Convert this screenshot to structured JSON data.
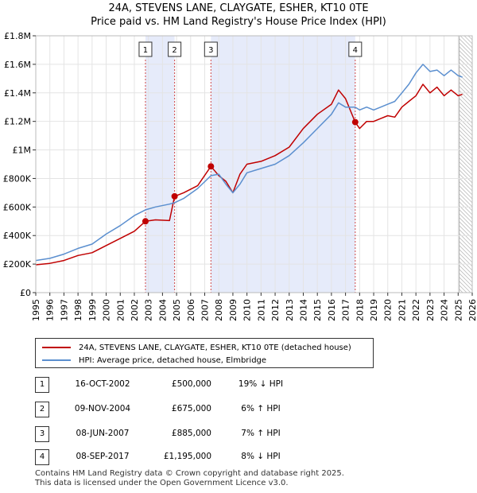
{
  "title_line1": "24A, STEVENS LANE, CLAYGATE, ESHER, KT10 0TE",
  "title_line2": "Price paid vs. HM Land Registry's House Price Index (HPI)",
  "colors": {
    "property": "#c00000",
    "hpi": "#5b8fcf",
    "shade": "#e6ebfa",
    "event_line": "#d04848"
  },
  "chart_data": {
    "type": "line",
    "x_range": [
      1995,
      2026
    ],
    "ylim": [
      0,
      1800000
    ],
    "y_ticks": [
      {
        "value": 0,
        "label": "£0"
      },
      {
        "value": 200000,
        "label": "£200K"
      },
      {
        "value": 400000,
        "label": "£400K"
      },
      {
        "value": 600000,
        "label": "£600K"
      },
      {
        "value": 800000,
        "label": "£800K"
      },
      {
        "value": 1000000,
        "label": "£1M"
      },
      {
        "value": 1200000,
        "label": "£1.2M"
      },
      {
        "value": 1400000,
        "label": "£1.4M"
      },
      {
        "value": 1600000,
        "label": "£1.6M"
      },
      {
        "value": 1800000,
        "label": "£1.8M"
      }
    ],
    "x_ticks": [
      "1995",
      "1996",
      "1997",
      "1998",
      "1999",
      "2000",
      "2001",
      "2002",
      "2003",
      "2004",
      "2005",
      "2006",
      "2007",
      "2008",
      "2009",
      "2010",
      "2011",
      "2012",
      "2013",
      "2014",
      "2015",
      "2016",
      "2017",
      "2018",
      "2019",
      "2020",
      "2021",
      "2022",
      "2023",
      "2024",
      "2025",
      "2026"
    ],
    "grid": true,
    "shaded_periods": [
      [
        2002.79,
        2004.86
      ],
      [
        2007.44,
        2017.69
      ]
    ],
    "forecast_start": 2025.08,
    "series": [
      {
        "name": "24A, STEVENS LANE, CLAYGATE, ESHER, KT10 0TE (detached house)",
        "color": "#c00000",
        "points": [
          [
            1995,
            195000
          ],
          [
            1996,
            205000
          ],
          [
            1997,
            225000
          ],
          [
            1998,
            260000
          ],
          [
            1999,
            280000
          ],
          [
            2000,
            330000
          ],
          [
            2001,
            380000
          ],
          [
            2002,
            430000
          ],
          [
            2002.79,
            500000
          ],
          [
            2003.5,
            510000
          ],
          [
            2004.5,
            505000
          ],
          [
            2004.86,
            675000
          ],
          [
            2005.5,
            700000
          ],
          [
            2006.5,
            750000
          ],
          [
            2007.44,
            885000
          ],
          [
            2008,
            820000
          ],
          [
            2008.5,
            780000
          ],
          [
            2009,
            700000
          ],
          [
            2009.5,
            830000
          ],
          [
            2010,
            900000
          ],
          [
            2011,
            920000
          ],
          [
            2012,
            960000
          ],
          [
            2013,
            1020000
          ],
          [
            2014,
            1150000
          ],
          [
            2015,
            1250000
          ],
          [
            2016,
            1320000
          ],
          [
            2016.5,
            1420000
          ],
          [
            2017,
            1360000
          ],
          [
            2017.69,
            1195000
          ],
          [
            2018,
            1150000
          ],
          [
            2018.5,
            1200000
          ],
          [
            2019,
            1200000
          ],
          [
            2019.5,
            1220000
          ],
          [
            2020,
            1240000
          ],
          [
            2020.5,
            1230000
          ],
          [
            2021,
            1300000
          ],
          [
            2021.5,
            1340000
          ],
          [
            2022,
            1380000
          ],
          [
            2022.5,
            1460000
          ],
          [
            2023,
            1400000
          ],
          [
            2023.5,
            1440000
          ],
          [
            2024,
            1380000
          ],
          [
            2024.5,
            1420000
          ],
          [
            2025,
            1380000
          ],
          [
            2025.3,
            1390000
          ]
        ]
      },
      {
        "name": "HPI: Average price, detached house, Elmbridge",
        "color": "#5b8fcf",
        "points": [
          [
            1995,
            225000
          ],
          [
            1996,
            240000
          ],
          [
            1997,
            270000
          ],
          [
            1998,
            310000
          ],
          [
            1999,
            340000
          ],
          [
            2000,
            410000
          ],
          [
            2001,
            470000
          ],
          [
            2002,
            540000
          ],
          [
            2002.79,
            580000
          ],
          [
            2003.5,
            600000
          ],
          [
            2004.5,
            620000
          ],
          [
            2004.86,
            630000
          ],
          [
            2005.5,
            660000
          ],
          [
            2006.5,
            730000
          ],
          [
            2007.44,
            820000
          ],
          [
            2008,
            830000
          ],
          [
            2008.5,
            760000
          ],
          [
            2009,
            700000
          ],
          [
            2009.5,
            760000
          ],
          [
            2010,
            840000
          ],
          [
            2011,
            870000
          ],
          [
            2012,
            900000
          ],
          [
            2013,
            960000
          ],
          [
            2014,
            1050000
          ],
          [
            2015,
            1150000
          ],
          [
            2016,
            1250000
          ],
          [
            2016.5,
            1330000
          ],
          [
            2017,
            1300000
          ],
          [
            2017.69,
            1300000
          ],
          [
            2018,
            1280000
          ],
          [
            2018.5,
            1300000
          ],
          [
            2019,
            1280000
          ],
          [
            2019.5,
            1300000
          ],
          [
            2020,
            1320000
          ],
          [
            2020.5,
            1340000
          ],
          [
            2021,
            1400000
          ],
          [
            2021.5,
            1460000
          ],
          [
            2022,
            1540000
          ],
          [
            2022.5,
            1600000
          ],
          [
            2023,
            1550000
          ],
          [
            2023.5,
            1560000
          ],
          [
            2024,
            1520000
          ],
          [
            2024.5,
            1560000
          ],
          [
            2025,
            1520000
          ],
          [
            2025.3,
            1510000
          ]
        ]
      }
    ],
    "sales": [
      {
        "label": "1",
        "x": 2002.79,
        "price": 500000
      },
      {
        "label": "2",
        "x": 2004.86,
        "price": 675000
      },
      {
        "label": "3",
        "x": 2007.44,
        "price": 885000
      },
      {
        "label": "4",
        "x": 2017.69,
        "price": 1195000
      }
    ]
  },
  "legend": {
    "property_label": "24A, STEVENS LANE, CLAYGATE, ESHER, KT10 0TE (detached house)",
    "hpi_label": "HPI: Average price, detached house, Elmbridge"
  },
  "transactions": [
    {
      "num": "1",
      "date": "16-OCT-2002",
      "price": "£500,000",
      "hpi": "19% ↓ HPI"
    },
    {
      "num": "2",
      "date": "09-NOV-2004",
      "price": "£675,000",
      "hpi": "6% ↑ HPI"
    },
    {
      "num": "3",
      "date": "08-JUN-2007",
      "price": "£885,000",
      "hpi": "7% ↑ HPI"
    },
    {
      "num": "4",
      "date": "08-SEP-2017",
      "price": "£1,195,000",
      "hpi": "8% ↓ HPI"
    }
  ],
  "footer_line1": "Contains HM Land Registry data © Crown copyright and database right 2025.",
  "footer_line2": "This data is licensed under the Open Government Licence v3.0."
}
